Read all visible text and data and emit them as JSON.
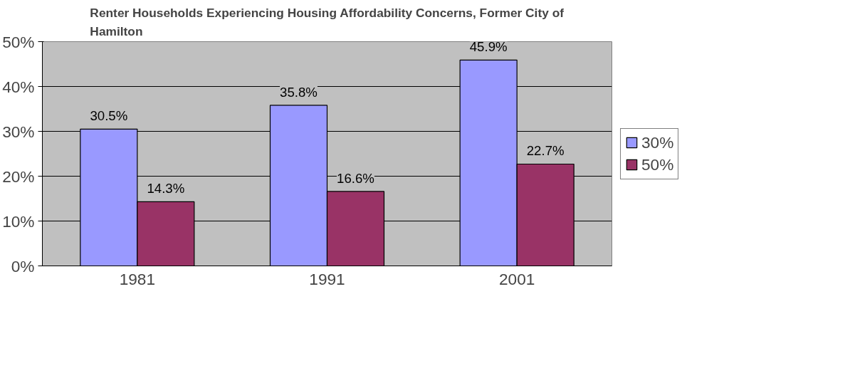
{
  "chart_data": {
    "type": "bar",
    "title": "Renter Households Experiencing Housing Affordability Concerns, Former City of Hamilton",
    "categories": [
      "1981",
      "1991",
      "2001"
    ],
    "series": [
      {
        "name": "30%",
        "color": "#9999ff",
        "values": [
          30.5,
          35.8,
          45.9
        ],
        "value_labels": [
          "30.5%",
          "35.8%",
          "45.9%"
        ]
      },
      {
        "name": "50%",
        "color": "#993366",
        "values": [
          14.3,
          16.6,
          22.7
        ],
        "value_labels": [
          "14.3%",
          "16.6%",
          "22.7%"
        ]
      }
    ],
    "ylim": [
      0,
      50
    ],
    "yticks": [
      {
        "value": 0,
        "label": "0%"
      },
      {
        "value": 10,
        "label": "10%"
      },
      {
        "value": 20,
        "label": "20%"
      },
      {
        "value": 30,
        "label": "30%"
      },
      {
        "value": 40,
        "label": "40%"
      },
      {
        "value": 50,
        "label": "50%"
      }
    ],
    "grid": "y",
    "legend": "right"
  }
}
